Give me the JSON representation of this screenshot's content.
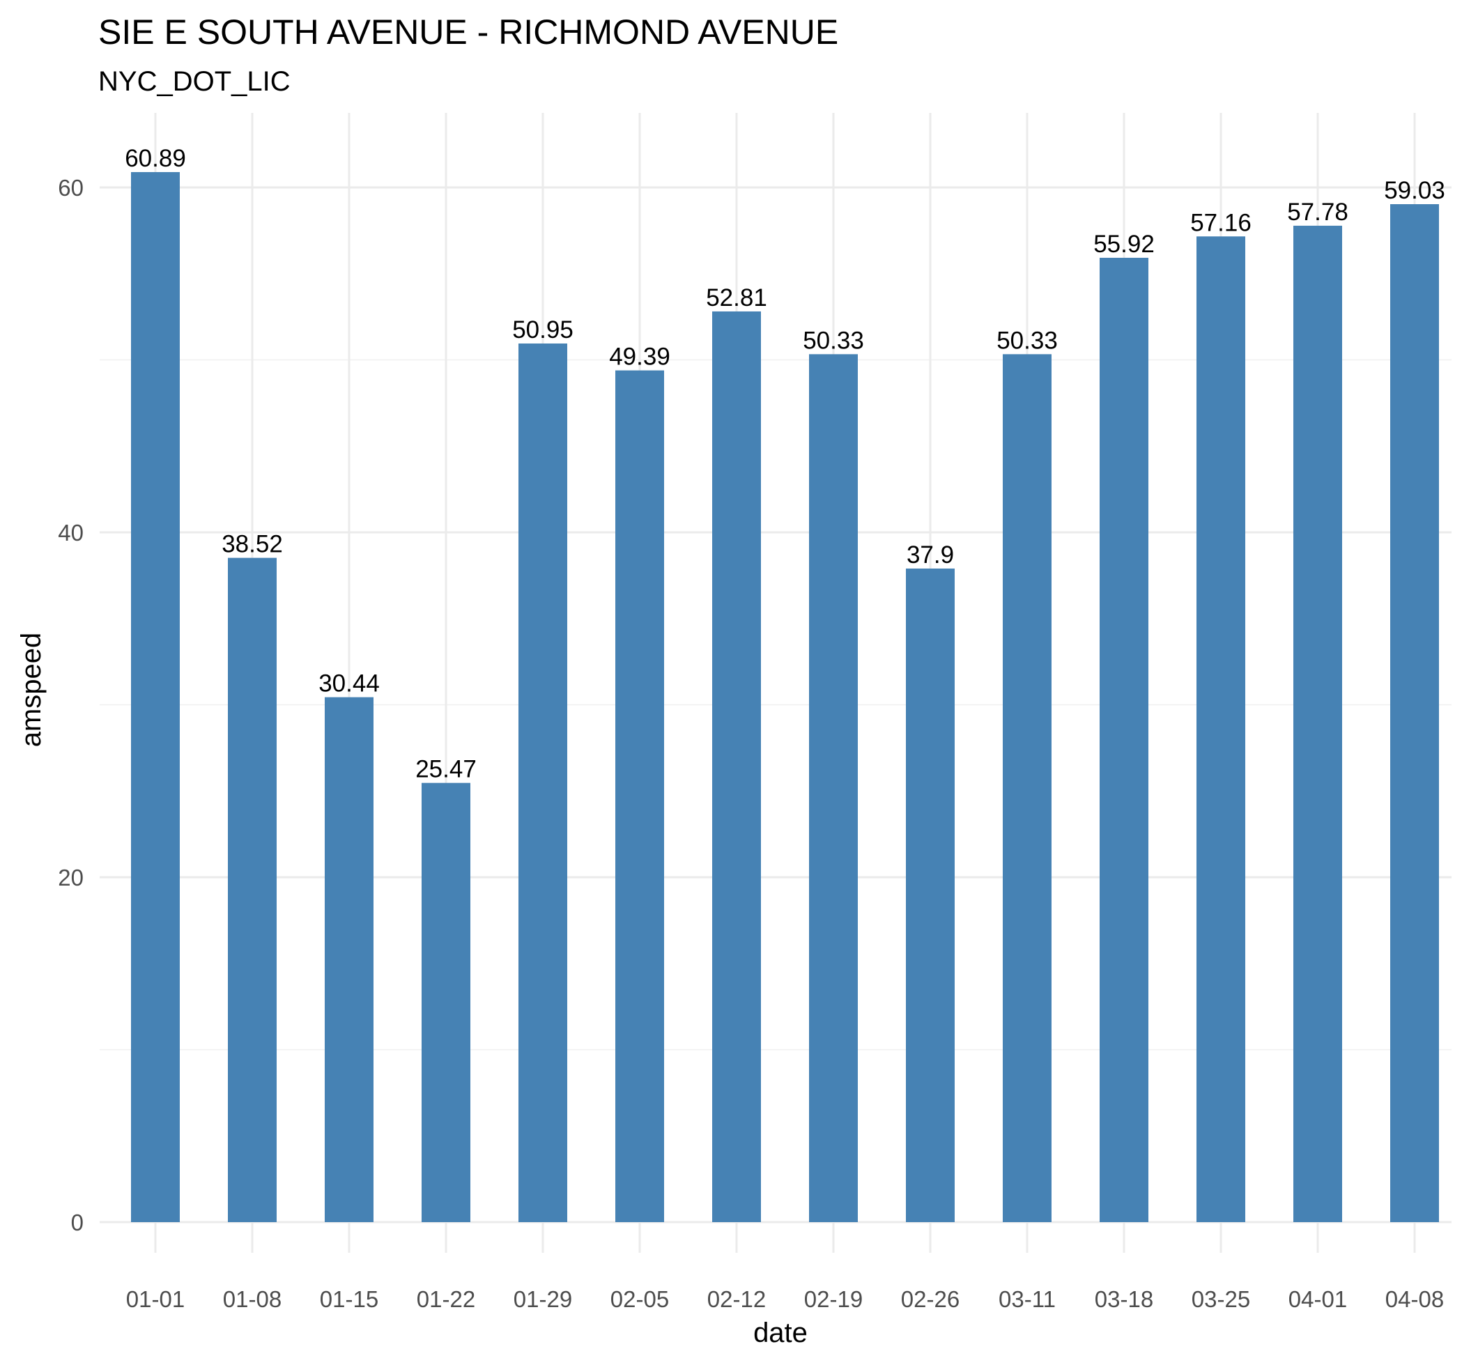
{
  "chart_data": {
    "type": "bar",
    "title": "SIE E SOUTH AVENUE - RICHMOND AVENUE",
    "subtitle": "NYC_DOT_LIC",
    "xlabel": "date",
    "ylabel": "amspeed",
    "ylim": [
      0,
      63
    ],
    "yticks": [
      0,
      20,
      40,
      60
    ],
    "ytick_labels": [
      "0",
      "20",
      "40",
      "60"
    ],
    "grid": true,
    "bar_color": "#4682B4",
    "categories": [
      "01-01",
      "01-08",
      "01-15",
      "01-22",
      "01-29",
      "02-05",
      "02-12",
      "02-19",
      "02-26",
      "03-11",
      "03-18",
      "03-25",
      "04-01",
      "04-08"
    ],
    "values": [
      60.89,
      38.52,
      30.44,
      25.47,
      50.95,
      49.39,
      52.81,
      50.33,
      37.9,
      50.33,
      55.92,
      57.16,
      57.78,
      59.03
    ],
    "value_labels": [
      "60.89",
      "38.52",
      "30.44",
      "25.47",
      "50.95",
      "49.39",
      "52.81",
      "50.33",
      "37.9",
      "50.33",
      "55.92",
      "57.16",
      "57.78",
      "59.03"
    ]
  }
}
